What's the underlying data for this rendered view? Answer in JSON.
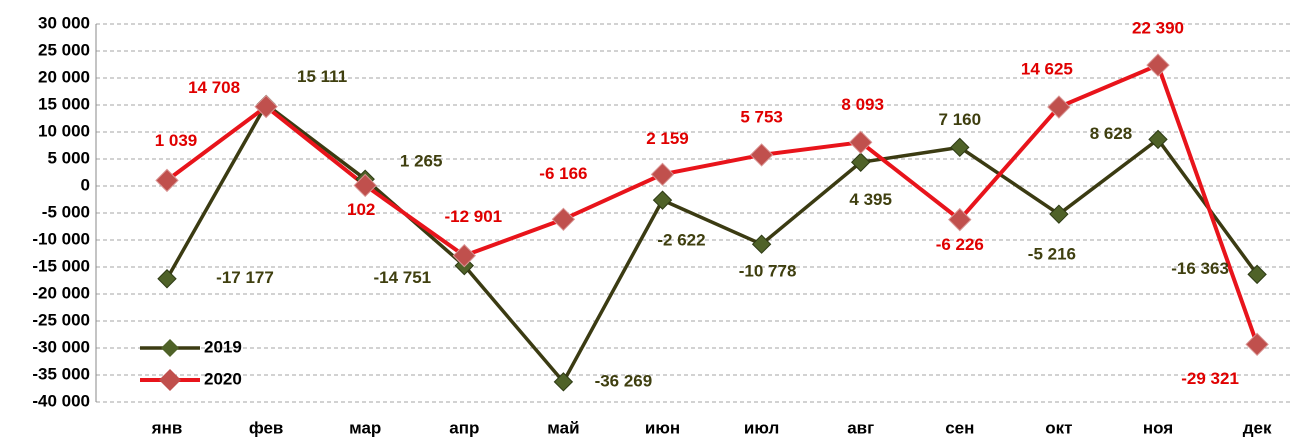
{
  "chart_data": {
    "type": "line",
    "categories": [
      "янв",
      "фев",
      "мар",
      "апр",
      "май",
      "июн",
      "июл",
      "авг",
      "сен",
      "окт",
      "ноя",
      "дек"
    ],
    "series": [
      {
        "name": "2019",
        "color": "#3b3b12",
        "marker_color": "#4f6228",
        "values": [
          -17177,
          15111,
          1265,
          -14751,
          -36269,
          -2622,
          -10778,
          4395,
          7160,
          -5216,
          8628,
          -16363
        ],
        "value_labels": [
          "-17 177",
          "15 111",
          "1 265",
          "-14 751",
          "-36 269",
          "-2 622",
          "-10 778",
          "4 395",
          "7 160",
          "-5 216",
          "8 628",
          "-16 363"
        ]
      },
      {
        "name": "2020",
        "color": "#e8141b",
        "marker_color": "#c0504d",
        "values": [
          1039,
          14708,
          102,
          -12901,
          -6166,
          2159,
          5753,
          8093,
          -6226,
          14625,
          22390,
          -29321
        ],
        "value_labels": [
          "1 039",
          "14 708",
          "102",
          "-12 901",
          "-6 166",
          "2 159",
          "5 753",
          "8 093",
          "-6 226",
          "14 625",
          "22 390",
          "-29 321"
        ]
      }
    ],
    "ylim": [
      -40000,
      30000
    ],
    "yticks": [
      {
        "value": 30000,
        "label": "30 000"
      },
      {
        "value": 25000,
        "label": "25 000"
      },
      {
        "value": 20000,
        "label": "20 000"
      },
      {
        "value": 15000,
        "label": "15 000"
      },
      {
        "value": 10000,
        "label": "10 000"
      },
      {
        "value": 5000,
        "label": "5 000"
      },
      0,
      {
        "value": -5000,
        "label": "-5 000"
      },
      {
        "value": -10000,
        "label": "-10 000"
      },
      {
        "value": -15000,
        "label": "-15 000"
      },
      {
        "value": -20000,
        "label": "-20 000"
      },
      {
        "value": -25000,
        "label": "-25 000"
      },
      {
        "value": -30000,
        "label": "-30 000"
      },
      {
        "value": -35000,
        "label": "-35 000"
      },
      {
        "value": -40000,
        "label": "-40 000"
      }
    ],
    "grid": true,
    "legend": "lower left"
  }
}
